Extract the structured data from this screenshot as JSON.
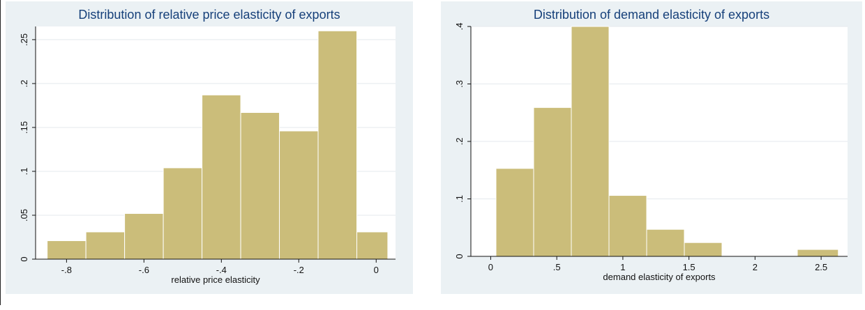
{
  "chart_data": [
    {
      "type": "bar",
      "subtype": "histogram",
      "title": "Distribution of relative price elasticity of exports",
      "xlabel": "relative price elasticity",
      "ylabel": "",
      "bin_edges": [
        -0.85,
        -0.75,
        -0.65,
        -0.55,
        -0.45,
        -0.35,
        -0.25,
        -0.15,
        -0.05,
        0.03
      ],
      "values": [
        0.021,
        0.031,
        0.052,
        0.104,
        0.187,
        0.167,
        0.146,
        0.26,
        0.031
      ],
      "xlim": [
        -0.88,
        0.05
      ],
      "ylim": [
        0,
        0.265
      ],
      "x_ticks": [
        -0.8,
        -0.6,
        -0.4,
        -0.2,
        0
      ],
      "x_tick_labels": [
        "-.8",
        "-.6",
        "-.4",
        "-.2",
        "0"
      ],
      "y_ticks": [
        0,
        0.05,
        0.1,
        0.15,
        0.2,
        0.25
      ],
      "y_tick_labels": [
        "0",
        ".05",
        ".1",
        ".15",
        ".2",
        ".25"
      ],
      "grid": true,
      "colors": {
        "bar_fill": "#cbbd7a",
        "bar_edge": "#ffffff",
        "title": "#16407a",
        "background": "#ebf1f4",
        "plot_area": "#ffffff",
        "grid": "#e4e9ec"
      }
    },
    {
      "type": "bar",
      "subtype": "histogram",
      "title": "Distribution of demand elasticity of exports",
      "xlabel": "demand elasticity of exports",
      "ylabel": "",
      "bin_edges": [
        0.04,
        0.325,
        0.61,
        0.895,
        1.18,
        1.465,
        1.75,
        2.035,
        2.32,
        2.63
      ],
      "values": [
        0.153,
        0.259,
        0.4,
        0.106,
        0.047,
        0.024,
        0,
        0,
        0.012
      ],
      "xlim": [
        -0.15,
        2.7
      ],
      "ylim": [
        0,
        0.4
      ],
      "x_ticks": [
        0,
        0.5,
        1,
        1.5,
        2,
        2.5
      ],
      "x_tick_labels": [
        "0",
        ".5",
        "1",
        "1.5",
        "2",
        "2.5"
      ],
      "y_ticks": [
        0,
        0.1,
        0.2,
        0.3,
        0.4
      ],
      "y_tick_labels": [
        "0",
        ".1",
        ".2",
        ".3",
        ".4"
      ],
      "grid": true,
      "colors": {
        "bar_fill": "#cbbd7a",
        "bar_edge": "#ffffff",
        "title": "#16407a",
        "background": "#ebf1f4",
        "plot_area": "#ffffff",
        "grid": "#e4e9ec"
      }
    }
  ]
}
